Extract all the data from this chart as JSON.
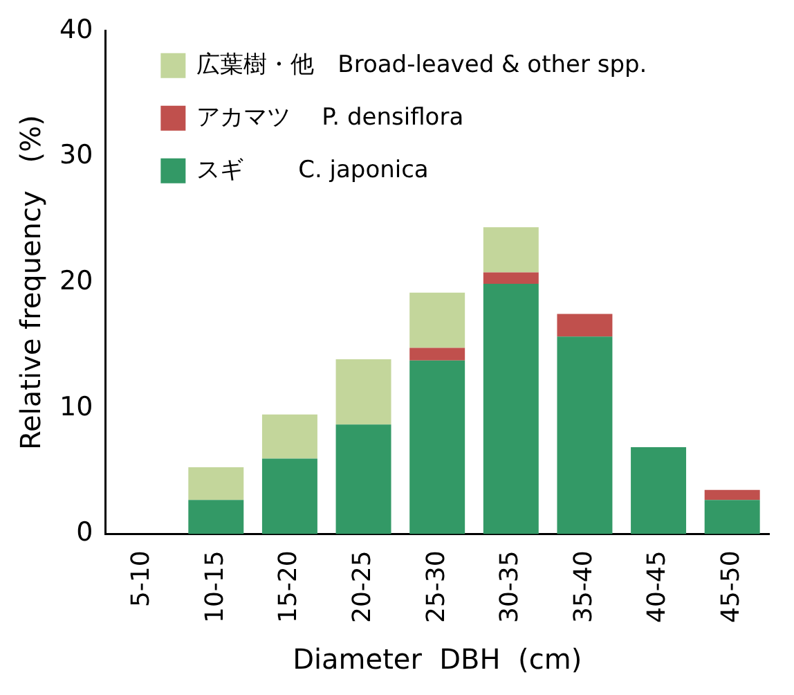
{
  "chart_data": {
    "type": "bar",
    "stacked": true,
    "xlabel": "Diameter  DBH  (cm)",
    "ylabel": "Relative frequency　(%)",
    "categories": [
      "5-10",
      "10-15",
      "15-20",
      "20-25",
      "25-30",
      "30-35",
      "35-40",
      "40-45",
      "45-50"
    ],
    "series": [
      {
        "name": "スギ　　 C. japonica",
        "color": "#339966",
        "values": [
          0,
          2.7,
          6.0,
          8.7,
          13.8,
          19.9,
          15.7,
          6.9,
          2.7
        ]
      },
      {
        "name": "アカマツ　 P. densiflora",
        "color": "#c0504d",
        "values": [
          0,
          0,
          0,
          0,
          1.0,
          0.9,
          1.8,
          0,
          0.8
        ]
      },
      {
        "name": "広葉樹・他　Broad-leaved & other spp.",
        "color": "#c3d69b",
        "values": [
          0,
          2.6,
          3.5,
          5.2,
          4.4,
          3.6,
          0,
          0,
          0
        ]
      }
    ],
    "ylim": [
      0,
      40
    ],
    "yticks": [
      0,
      10,
      20,
      30,
      40
    ],
    "grid": false,
    "legend": "top left"
  }
}
